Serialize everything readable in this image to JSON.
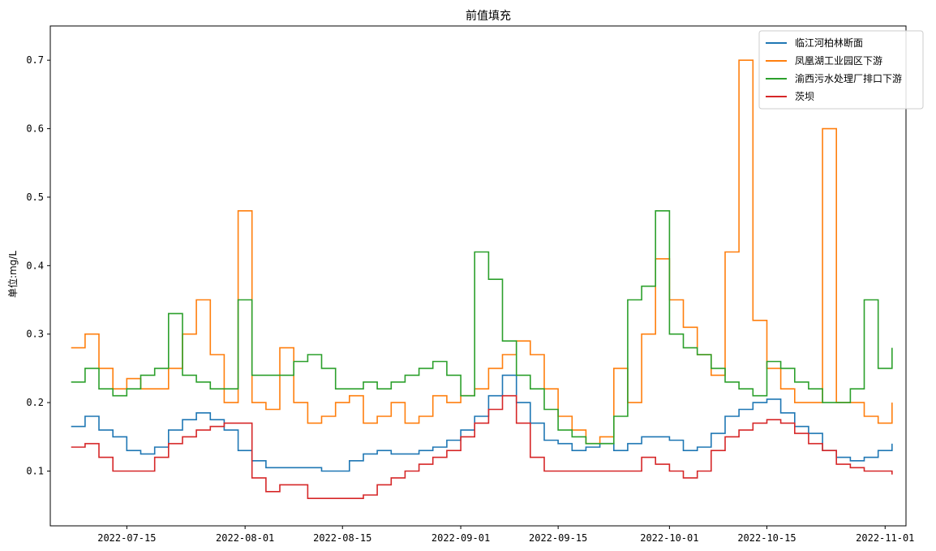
{
  "chart_data": {
    "type": "line",
    "title": "前值填充",
    "xlabel": "",
    "ylabel": "单位:mg/L",
    "xlim": [
      "2022-07-04",
      "2022-11-04"
    ],
    "ylim": [
      0.02,
      0.75
    ],
    "x_ticks": [
      "2022-07-15",
      "2022-08-01",
      "2022-08-15",
      "2022-09-01",
      "2022-09-15",
      "2022-10-01",
      "2022-10-15",
      "2022-11-01"
    ],
    "y_ticks": [
      0.1,
      0.2,
      0.3,
      0.4,
      0.5,
      0.6,
      0.7
    ],
    "grid": false,
    "legend_position": "top-right",
    "step": true,
    "x": [
      "2022-07-07",
      "2022-07-09",
      "2022-07-11",
      "2022-07-13",
      "2022-07-15",
      "2022-07-17",
      "2022-07-19",
      "2022-07-21",
      "2022-07-23",
      "2022-07-25",
      "2022-07-27",
      "2022-07-29",
      "2022-07-31",
      "2022-08-02",
      "2022-08-04",
      "2022-08-06",
      "2022-08-08",
      "2022-08-10",
      "2022-08-12",
      "2022-08-14",
      "2022-08-16",
      "2022-08-18",
      "2022-08-20",
      "2022-08-22",
      "2022-08-24",
      "2022-08-26",
      "2022-08-28",
      "2022-08-30",
      "2022-09-01",
      "2022-09-03",
      "2022-09-05",
      "2022-09-07",
      "2022-09-09",
      "2022-09-11",
      "2022-09-13",
      "2022-09-15",
      "2022-09-17",
      "2022-09-19",
      "2022-09-21",
      "2022-09-23",
      "2022-09-25",
      "2022-09-27",
      "2022-09-29",
      "2022-10-01",
      "2022-10-03",
      "2022-10-05",
      "2022-10-07",
      "2022-10-09",
      "2022-10-11",
      "2022-10-13",
      "2022-10-15",
      "2022-10-17",
      "2022-10-19",
      "2022-10-21",
      "2022-10-23",
      "2022-10-25",
      "2022-10-27",
      "2022-10-29",
      "2022-10-31",
      "2022-11-02"
    ],
    "series": [
      {
        "name": "临江河柏林断面",
        "color": "#1f77b4",
        "values": [
          0.165,
          0.18,
          0.16,
          0.15,
          0.13,
          0.125,
          0.135,
          0.16,
          0.175,
          0.185,
          0.175,
          0.16,
          0.13,
          0.115,
          0.105,
          0.105,
          0.105,
          0.105,
          0.1,
          0.1,
          0.115,
          0.125,
          0.13,
          0.125,
          0.125,
          0.13,
          0.135,
          0.145,
          0.16,
          0.18,
          0.21,
          0.24,
          0.2,
          0.17,
          0.145,
          0.14,
          0.13,
          0.135,
          0.14,
          0.13,
          0.14,
          0.15,
          0.15,
          0.145,
          0.13,
          0.135,
          0.155,
          0.18,
          0.19,
          0.2,
          0.205,
          0.185,
          0.165,
          0.155,
          0.13,
          0.12,
          0.115,
          0.12,
          0.13,
          0.14
        ]
      },
      {
        "name": "凤凰湖工业园区下游",
        "color": "#ff7f0e",
        "values": [
          0.28,
          0.3,
          0.25,
          0.22,
          0.235,
          0.22,
          0.22,
          0.25,
          0.3,
          0.35,
          0.27,
          0.2,
          0.48,
          0.2,
          0.19,
          0.28,
          0.2,
          0.17,
          0.18,
          0.2,
          0.21,
          0.17,
          0.18,
          0.2,
          0.17,
          0.18,
          0.21,
          0.2,
          0.21,
          0.22,
          0.25,
          0.27,
          0.29,
          0.27,
          0.22,
          0.18,
          0.16,
          0.14,
          0.15,
          0.25,
          0.2,
          0.3,
          0.41,
          0.35,
          0.31,
          0.27,
          0.24,
          0.42,
          0.7,
          0.32,
          0.25,
          0.22,
          0.2,
          0.2,
          0.6,
          0.2,
          0.2,
          0.18,
          0.17,
          0.2
        ]
      },
      {
        "name": "渝西污水处理厂排口下游",
        "color": "#2ca02c",
        "values": [
          0.23,
          0.25,
          0.22,
          0.21,
          0.22,
          0.24,
          0.25,
          0.33,
          0.24,
          0.23,
          0.22,
          0.22,
          0.35,
          0.24,
          0.24,
          0.24,
          0.26,
          0.27,
          0.25,
          0.22,
          0.22,
          0.23,
          0.22,
          0.23,
          0.24,
          0.25,
          0.26,
          0.24,
          0.21,
          0.42,
          0.38,
          0.29,
          0.24,
          0.22,
          0.19,
          0.16,
          0.15,
          0.14,
          0.14,
          0.18,
          0.35,
          0.37,
          0.48,
          0.3,
          0.28,
          0.27,
          0.25,
          0.23,
          0.22,
          0.21,
          0.26,
          0.25,
          0.23,
          0.22,
          0.2,
          0.2,
          0.22,
          0.35,
          0.25,
          0.28
        ]
      },
      {
        "name": "茨坝",
        "color": "#d62728",
        "values": [
          0.135,
          0.14,
          0.12,
          0.1,
          0.1,
          0.1,
          0.12,
          0.14,
          0.15,
          0.16,
          0.165,
          0.17,
          0.17,
          0.09,
          0.07,
          0.08,
          0.08,
          0.06,
          0.06,
          0.06,
          0.06,
          0.065,
          0.08,
          0.09,
          0.1,
          0.11,
          0.12,
          0.13,
          0.15,
          0.17,
          0.19,
          0.21,
          0.17,
          0.12,
          0.1,
          0.1,
          0.1,
          0.1,
          0.1,
          0.1,
          0.1,
          0.12,
          0.11,
          0.1,
          0.09,
          0.1,
          0.13,
          0.15,
          0.16,
          0.17,
          0.175,
          0.17,
          0.155,
          0.14,
          0.13,
          0.11,
          0.105,
          0.1,
          0.1,
          0.095
        ]
      }
    ]
  }
}
